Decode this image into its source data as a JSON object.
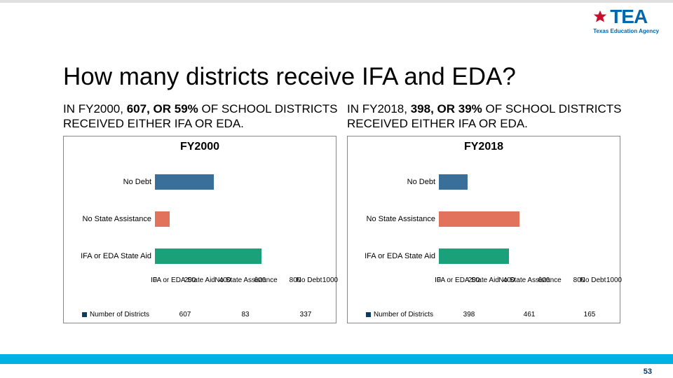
{
  "logo": {
    "text": "TEA",
    "subtitle": "Texas Education Agency",
    "star_color": "#c8102e",
    "text_color": "#0067b1"
  },
  "title": "How many districts receive IFA and EDA?",
  "left": {
    "summary_prefix": "IN FY2000, ",
    "summary_highlight": "607, OR 59%",
    "summary_suffix": " OF SCHOOL DISTRICTS RECEIVED EITHER IFA OR EDA.",
    "chart_title": "FY2000"
  },
  "right": {
    "summary_prefix": "IN FY2018, ",
    "summary_highlight": "398, OR 39%",
    "summary_suffix": " OF SCHOOL DISTRICTS RECEIVED EITHER IFA OR EDA.",
    "chart_title": "FY2018"
  },
  "chart": {
    "type": "bar-horizontal",
    "categories": [
      "No Debt",
      "No State Assistance",
      "IFA or EDA State Aid"
    ],
    "xlim": [
      0,
      1000
    ],
    "xtick_step": 200,
    "xticks": [
      0,
      200,
      400,
      600,
      800,
      1000
    ],
    "cat_label_fontsize": 11,
    "tick_fontsize": 10,
    "background_color": "#ffffff",
    "border_color": "#888888",
    "axis_overlay_labels": [
      "IFA or EDA State Aid",
      "No State Assistance",
      "No Debt"
    ],
    "legend_series_label": "Number of Districts",
    "legend_square_color": "#0c3c60"
  },
  "data_left": {
    "values": [
      337,
      83,
      607
    ],
    "bar_colors": [
      "#3a6f9a",
      "#e2725b",
      "#1aa179"
    ],
    "legend_values": [
      607,
      83,
      337
    ]
  },
  "data_right": {
    "values": [
      165,
      461,
      398
    ],
    "bar_colors": [
      "#3a6f9a",
      "#e2725b",
      "#1aa179"
    ],
    "legend_values": [
      398,
      461,
      165
    ]
  },
  "footer": {
    "band_color": "#00b2e3",
    "page_number": "53",
    "page_number_color": "#003865"
  }
}
